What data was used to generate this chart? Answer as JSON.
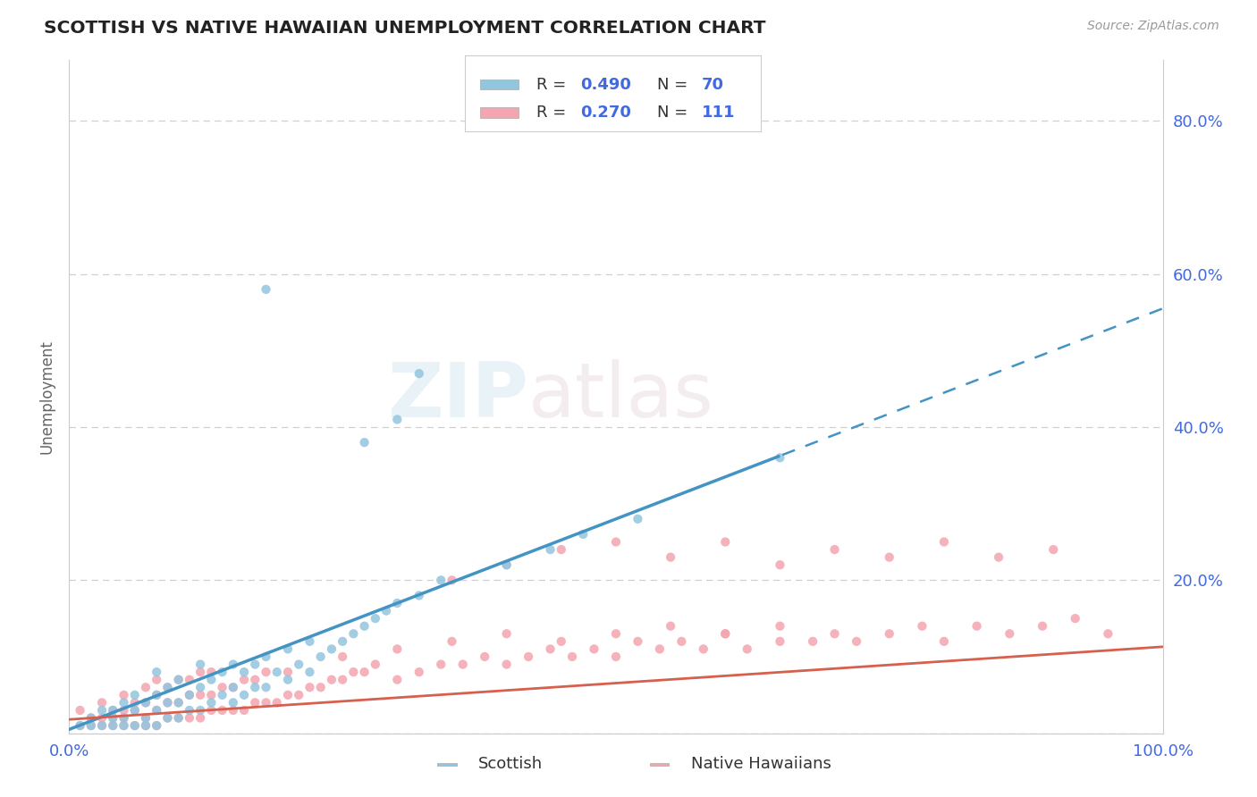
{
  "title": "SCOTTISH VS NATIVE HAWAIIAN UNEMPLOYMENT CORRELATION CHART",
  "source": "Source: ZipAtlas.com",
  "ylabel": "Unemployment",
  "xlim": [
    0,
    1.0
  ],
  "ylim": [
    0,
    0.88
  ],
  "ytick_positions": [
    0.0,
    0.2,
    0.4,
    0.6,
    0.8
  ],
  "ytick_labels": [
    "",
    "20.0%",
    "40.0%",
    "60.0%",
    "80.0%"
  ],
  "watermark_zip": "ZIP",
  "watermark_atlas": "atlas",
  "scottish_R": 0.49,
  "scottish_N": 70,
  "hawaiian_R": 0.27,
  "hawaiian_N": 111,
  "scottish_color": "#92c5de",
  "hawaiian_color": "#f4a5b0",
  "scottish_trend_color": "#4393c3",
  "hawaiian_trend_color": "#d6604d",
  "background_color": "#ffffff",
  "grid_color": "#d0d0d0",
  "title_color": "#222222",
  "tick_color": "#4169e1",
  "ylabel_color": "#666666",
  "legend_border_color": "#cccccc",
  "scottish_trend_intercept": 0.005,
  "scottish_trend_slope": 0.55,
  "hawaiian_trend_intercept": 0.018,
  "hawaiian_trend_slope": 0.095,
  "scottish_scatter": {
    "x": [
      0.01,
      0.02,
      0.02,
      0.03,
      0.03,
      0.04,
      0.04,
      0.04,
      0.05,
      0.05,
      0.05,
      0.06,
      0.06,
      0.06,
      0.07,
      0.07,
      0.07,
      0.08,
      0.08,
      0.08,
      0.08,
      0.09,
      0.09,
      0.09,
      0.1,
      0.1,
      0.1,
      0.11,
      0.11,
      0.12,
      0.12,
      0.12,
      0.13,
      0.13,
      0.14,
      0.14,
      0.15,
      0.15,
      0.15,
      0.16,
      0.16,
      0.17,
      0.17,
      0.18,
      0.18,
      0.19,
      0.2,
      0.2,
      0.21,
      0.22,
      0.22,
      0.23,
      0.24,
      0.25,
      0.26,
      0.27,
      0.28,
      0.29,
      0.3,
      0.32,
      0.34,
      0.4,
      0.44,
      0.47,
      0.52,
      0.65,
      0.27,
      0.3,
      0.32,
      0.18
    ],
    "y": [
      0.01,
      0.01,
      0.02,
      0.01,
      0.03,
      0.01,
      0.02,
      0.03,
      0.01,
      0.02,
      0.04,
      0.01,
      0.03,
      0.05,
      0.01,
      0.02,
      0.04,
      0.01,
      0.03,
      0.05,
      0.08,
      0.02,
      0.04,
      0.06,
      0.02,
      0.04,
      0.07,
      0.03,
      0.05,
      0.03,
      0.06,
      0.09,
      0.04,
      0.07,
      0.05,
      0.08,
      0.04,
      0.06,
      0.09,
      0.05,
      0.08,
      0.06,
      0.09,
      0.06,
      0.1,
      0.08,
      0.07,
      0.11,
      0.09,
      0.08,
      0.12,
      0.1,
      0.11,
      0.12,
      0.13,
      0.14,
      0.15,
      0.16,
      0.17,
      0.18,
      0.2,
      0.22,
      0.24,
      0.26,
      0.28,
      0.36,
      0.38,
      0.41,
      0.47,
      0.58
    ]
  },
  "hawaiian_scatter": {
    "x": [
      0.01,
      0.01,
      0.02,
      0.02,
      0.03,
      0.03,
      0.03,
      0.04,
      0.04,
      0.04,
      0.05,
      0.05,
      0.05,
      0.05,
      0.06,
      0.06,
      0.06,
      0.07,
      0.07,
      0.07,
      0.07,
      0.08,
      0.08,
      0.08,
      0.08,
      0.09,
      0.09,
      0.09,
      0.1,
      0.1,
      0.1,
      0.11,
      0.11,
      0.11,
      0.12,
      0.12,
      0.12,
      0.13,
      0.13,
      0.13,
      0.14,
      0.14,
      0.15,
      0.15,
      0.16,
      0.16,
      0.17,
      0.17,
      0.18,
      0.18,
      0.19,
      0.2,
      0.2,
      0.21,
      0.22,
      0.23,
      0.24,
      0.25,
      0.26,
      0.27,
      0.28,
      0.3,
      0.32,
      0.34,
      0.36,
      0.38,
      0.4,
      0.42,
      0.44,
      0.46,
      0.48,
      0.5,
      0.52,
      0.54,
      0.56,
      0.58,
      0.6,
      0.62,
      0.65,
      0.68,
      0.7,
      0.72,
      0.75,
      0.78,
      0.8,
      0.83,
      0.86,
      0.89,
      0.92,
      0.95,
      0.35,
      0.4,
      0.45,
      0.5,
      0.55,
      0.6,
      0.65,
      0.7,
      0.75,
      0.8,
      0.85,
      0.9,
      0.25,
      0.3,
      0.35,
      0.4,
      0.45,
      0.5,
      0.55,
      0.6,
      0.65
    ],
    "y": [
      0.01,
      0.03,
      0.01,
      0.02,
      0.01,
      0.02,
      0.04,
      0.01,
      0.02,
      0.03,
      0.01,
      0.02,
      0.03,
      0.05,
      0.01,
      0.03,
      0.04,
      0.01,
      0.02,
      0.04,
      0.06,
      0.01,
      0.03,
      0.05,
      0.07,
      0.02,
      0.04,
      0.06,
      0.02,
      0.04,
      0.07,
      0.02,
      0.05,
      0.07,
      0.02,
      0.05,
      0.08,
      0.03,
      0.05,
      0.08,
      0.03,
      0.06,
      0.03,
      0.06,
      0.03,
      0.07,
      0.04,
      0.07,
      0.04,
      0.08,
      0.04,
      0.05,
      0.08,
      0.05,
      0.06,
      0.06,
      0.07,
      0.07,
      0.08,
      0.08,
      0.09,
      0.07,
      0.08,
      0.09,
      0.09,
      0.1,
      0.09,
      0.1,
      0.11,
      0.1,
      0.11,
      0.1,
      0.12,
      0.11,
      0.12,
      0.11,
      0.13,
      0.11,
      0.12,
      0.12,
      0.13,
      0.12,
      0.13,
      0.14,
      0.12,
      0.14,
      0.13,
      0.14,
      0.15,
      0.13,
      0.2,
      0.22,
      0.24,
      0.25,
      0.23,
      0.25,
      0.22,
      0.24,
      0.23,
      0.25,
      0.23,
      0.24,
      0.1,
      0.11,
      0.12,
      0.13,
      0.12,
      0.13,
      0.14,
      0.13,
      0.14
    ]
  }
}
